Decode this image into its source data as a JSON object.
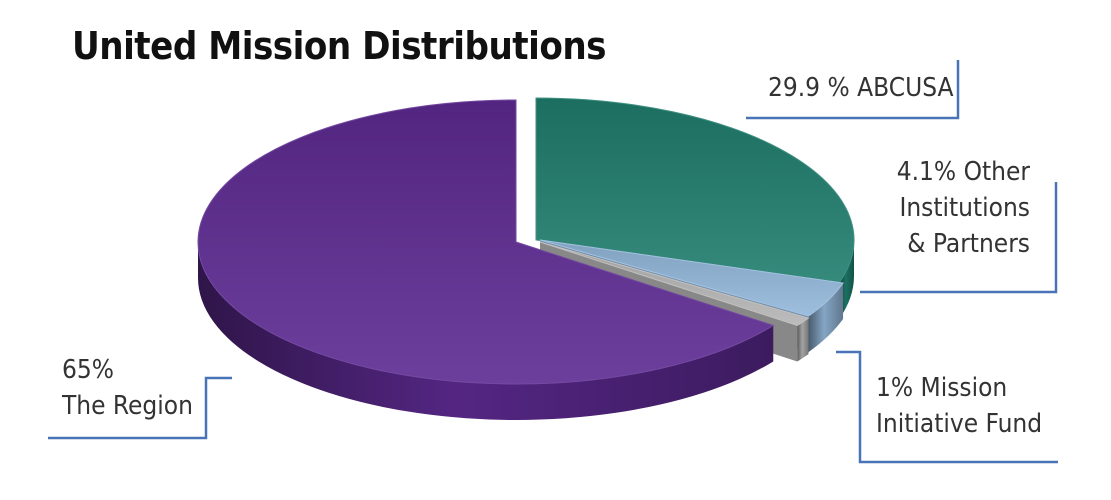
{
  "chart_data": {
    "type": "pie",
    "title": "United Mission Distributions",
    "slices": [
      {
        "label_lines": [
          "29.9 % ABCUSA"
        ],
        "value": 29.9,
        "color": "#1f7d6d"
      },
      {
        "label_lines": [
          "4.1% Other",
          "Institutions",
          "& Partners"
        ],
        "value": 4.1,
        "color": "#93b7da"
      },
      {
        "label_lines": [
          "1% Mission",
          "Initiative Fund"
        ],
        "value": 1,
        "color": "#b5b5b5"
      },
      {
        "label_lines": [
          "65%",
          "The Region"
        ],
        "value": 65,
        "color": "#5d2a92"
      }
    ],
    "leader_line_color": "#4a74b8"
  }
}
